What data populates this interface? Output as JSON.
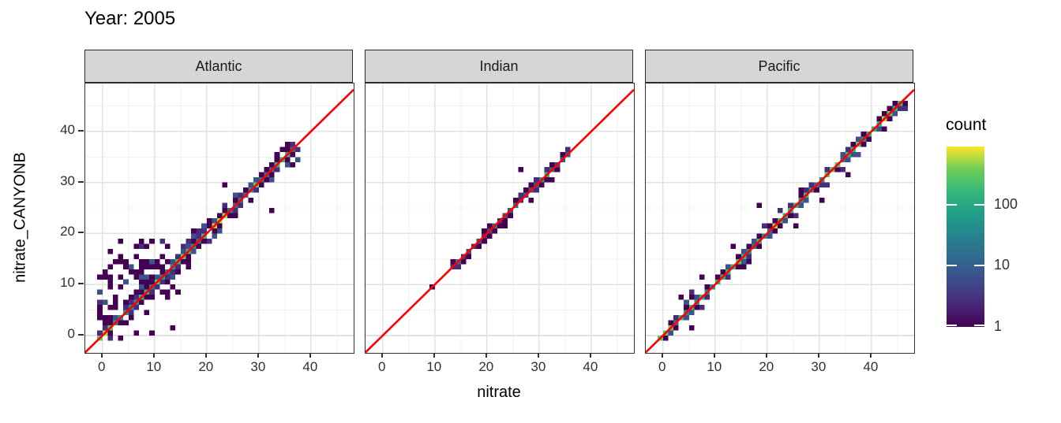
{
  "title": "Year: 2005",
  "theme": {
    "strip_bg": "#d6d6d6",
    "strip_border": "#2a2a2a",
    "panel_border": "#333333",
    "grid_major": "#e2e2e2",
    "grid_minor": "#f0f0f0",
    "tick_text": "#303030",
    "identity_line_color": "#ff0000"
  },
  "chart_data": {
    "type": "heatmap",
    "subtype": "geom_bin2d faceted scatter of nitrate_CANYONB vs nitrate",
    "title": "Year: 2005",
    "xlabel": "nitrate",
    "ylabel": "nitrate_CANYONB",
    "x_ticks": [
      0,
      10,
      20,
      30,
      40
    ],
    "y_ticks": [
      0,
      10,
      20,
      30,
      40
    ],
    "x_minor_ticks": [
      5,
      15,
      25,
      35,
      45
    ],
    "y_minor_ticks": [
      5,
      15,
      25,
      35,
      45
    ],
    "x_range": [
      -3.3,
      48.2
    ],
    "y_range": [
      -3.4,
      49.4
    ],
    "binwidth": 1,
    "grid": true,
    "identity_line": {
      "equation": "y = x",
      "color": "#ff0000"
    },
    "legend": {
      "title": "count",
      "scale": "log10",
      "position": "right",
      "tick_labels": [
        "100",
        "10",
        "1"
      ],
      "tick_values": [
        100,
        10,
        1
      ],
      "max_value_est": 900,
      "gradient_bottom_to_top": [
        "#440154",
        "#482878",
        "#3e4a89",
        "#31688e",
        "#26828e",
        "#1f9e89",
        "#35b779",
        "#6ece58",
        "#fde725"
      ]
    },
    "palette": {
      "P1": "#440154",
      "P2": "#472d7b",
      "B": "#3b528b",
      "B2": "#2c728e",
      "T": "#21918c",
      "G": "#35b779",
      "G2": "#5ec962",
      "Y": "#addc30"
    },
    "facets": [
      {
        "label": "Atlantic",
        "seed": 11,
        "description": "tight 1:1 band 0-36 plus diffuse over-estimation cloud at nitrate 0-13",
        "regions": [
          {
            "type": "diag",
            "from": -1,
            "to": 36,
            "halfwidth": 3,
            "coreProb": 0.97,
            "sideFalloff": [
              0.75,
              0.28,
              0.07
            ],
            "core": {
              "T": 0.42,
              "B2": 0.3,
              "G": 0.22,
              "G2": 0.06
            },
            "side": {
              "P1": 0.52,
              "P2": 0.28,
              "B": 0.2
            },
            "greens": [
              [
                -1,
                1
              ],
              [
                14,
                16
              ],
              [
                21,
                23
              ],
              [
                33,
                35
              ]
            ],
            "greenColors": {
              "G": 0.45,
              "G2": 0.35,
              "Y": 0.2
            }
          },
          {
            "type": "rel",
            "x": [
              -1,
              12
            ],
            "dy": [
              2,
              12
            ],
            "yMax": 18,
            "prob": 0.32,
            "colors": {
              "P1": 0.72,
              "P2": 0.18,
              "B": 0.1
            }
          },
          {
            "type": "rel",
            "x": [
              2,
              14
            ],
            "dy": [
              -7,
              -2
            ],
            "yMin": -1,
            "prob": 0.12,
            "colors": {
              "P1": 0.85,
              "P2": 0.15
            }
          },
          {
            "type": "abs",
            "x": [
              3,
              13
            ],
            "y": [
              13,
              15
            ],
            "prob": 0.45,
            "colors": {
              "P1": 0.35,
              "P2": 0.2,
              "B": 0.25,
              "B2": 0.2
            }
          },
          {
            "type": "cells",
            "color": "P1",
            "list": [
              [
                32,
                24
              ],
              [
                35,
                37
              ],
              [
                23,
                29
              ],
              [
                1,
                16
              ],
              [
                3,
                18
              ],
              [
                6,
                17
              ],
              [
                17,
                20
              ],
              [
                13,
                1
              ],
              [
                9,
                0
              ]
            ]
          }
        ]
      },
      {
        "label": "Indian",
        "seed": 22,
        "description": "sparse 1:1 band 13-35 with isolated bin at (9,9), teal high-count near 30-31",
        "regions": [
          {
            "type": "diag",
            "from": 13,
            "to": 35,
            "halfwidth": 1,
            "coreProb": 0.92,
            "sideFalloff": [
              0.45
            ],
            "core": {
              "P2": 0.3,
              "B": 0.35,
              "B2": 0.25,
              "T": 0.1
            },
            "side": {
              "P1": 0.78,
              "P2": 0.22
            },
            "greens": [
              [
                30,
                31
              ]
            ],
            "greenColors": {
              "T": 0.5,
              "G": 0.5
            }
          },
          {
            "type": "cells",
            "color": "P1",
            "list": [
              [
                9,
                9
              ],
              [
                26,
                32
              ],
              [
                32,
                30
              ],
              [
                23,
                21
              ],
              [
                28,
                26
              ]
            ]
          }
        ]
      },
      {
        "label": "Pacific",
        "seed": 33,
        "description": "dense 1:1 band 0-45, green high-count core along diagonal",
        "regions": [
          {
            "type": "diag",
            "from": -1,
            "to": 45,
            "halfwidth": 2,
            "coreProb": 0.99,
            "sideFalloff": [
              0.62,
              0.18
            ],
            "core": {
              "T": 0.4,
              "B2": 0.18,
              "G": 0.3,
              "G2": 0.12
            },
            "greens": [
              [
                -1,
                1
              ],
              [
                10,
                12
              ],
              [
                21,
                23
              ],
              [
                31,
                33
              ],
              [
                40,
                44
              ]
            ],
            "greenColors": {
              "G": 0.5,
              "G2": 0.3,
              "Y": 0.2
            },
            "side": {
              "P1": 0.5,
              "P2": 0.28,
              "B": 0.22
            }
          },
          {
            "type": "rel",
            "x": [
              3,
              8
            ],
            "dy": [
              2,
              4
            ],
            "prob": 0.3,
            "colors": {
              "P1": 0.8,
              "P2": 0.2
            }
          },
          {
            "type": "rel",
            "x": [
              2,
              12
            ],
            "dy": [
              -4,
              -2
            ],
            "yMin": -1,
            "prob": 0.1,
            "colors": {
              "P1": 0.9,
              "P2": 0.1
            }
          },
          {
            "type": "cells",
            "color": "P1",
            "list": [
              [
                18,
                25
              ],
              [
                25,
                21
              ],
              [
                30,
                26
              ],
              [
                13,
                17
              ],
              [
                35,
                31
              ],
              [
                5,
                1
              ],
              [
                44,
                45
              ]
            ]
          }
        ]
      }
    ]
  }
}
